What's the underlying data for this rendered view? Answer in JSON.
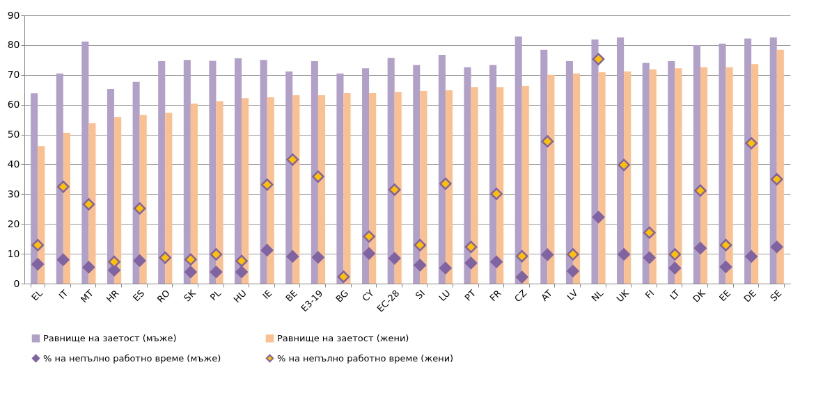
{
  "chart_data": {
    "type": "bar",
    "categories": [
      "EL",
      "IT",
      "MT",
      "HR",
      "ES",
      "RO",
      "SK",
      "PL",
      "HU",
      "IE",
      "BE",
      "E3-19",
      "BG",
      "CY",
      "EC-28",
      "SI",
      "LU",
      "PT",
      "FR",
      "CZ",
      "AT",
      "LV",
      "NL",
      "UK",
      "FI",
      "LT",
      "DK",
      "EE",
      "DE",
      "SE"
    ],
    "series": [
      {
        "name": "Равнище на заетост (мъже)",
        "color": "#b1a0c7",
        "values": [
          63.8,
          70.5,
          81.2,
          65.3,
          67.7,
          74.6,
          75.0,
          74.7,
          75.6,
          75.0,
          71.2,
          74.6,
          70.5,
          72.2,
          75.7,
          73.3,
          76.7,
          72.6,
          73.3,
          82.9,
          78.4,
          74.6,
          81.9,
          82.6,
          74.0,
          74.6,
          80.0,
          80.5,
          82.2,
          82.6
        ]
      },
      {
        "name": "Равнище на заетост (жени)",
        "color": "#fac090",
        "values": [
          46.1,
          50.6,
          53.8,
          55.9,
          56.6,
          57.3,
          60.4,
          61.2,
          62.2,
          62.5,
          63.2,
          63.2,
          63.9,
          63.9,
          64.3,
          64.6,
          64.9,
          65.9,
          65.9,
          66.3,
          70.0,
          70.5,
          70.9,
          71.2,
          71.9,
          72.2,
          72.6,
          72.6,
          73.6,
          78.4
        ]
      },
      {
        "name": "% на непълно работно време (мъже)",
        "type": "scatter",
        "marker": "diamond",
        "color": "#8064a2",
        "values": [
          6.5,
          8.0,
          5.5,
          4.5,
          7.7,
          null,
          3.9,
          3.9,
          3.9,
          11.2,
          9.1,
          8.8,
          null,
          10.1,
          8.5,
          6.2,
          5.2,
          6.9,
          7.3,
          2.2,
          9.7,
          4.2,
          22.3,
          9.8,
          8.7,
          5.2,
          11.9,
          5.6,
          9.1,
          12.3
        ]
      },
      {
        "name": "% на непълно работно време (жени)",
        "type": "scatter",
        "marker": "diamond",
        "color": "#ffc000",
        "values": [
          12.9,
          32.5,
          26.6,
          7.3,
          25.2,
          8.7,
          8.1,
          9.8,
          7.6,
          33.2,
          41.6,
          35.9,
          2.3,
          15.8,
          31.5,
          12.9,
          33.5,
          12.3,
          30.1,
          9.2,
          47.7,
          9.8,
          75.3,
          39.8,
          17.1,
          9.8,
          31.2,
          12.9,
          47.1,
          35.0
        ]
      }
    ],
    "ylim": [
      0,
      90
    ],
    "yticks": [
      0,
      10,
      20,
      30,
      40,
      50,
      60,
      70,
      80,
      90
    ],
    "grid": "y",
    "legend": "bottom"
  }
}
